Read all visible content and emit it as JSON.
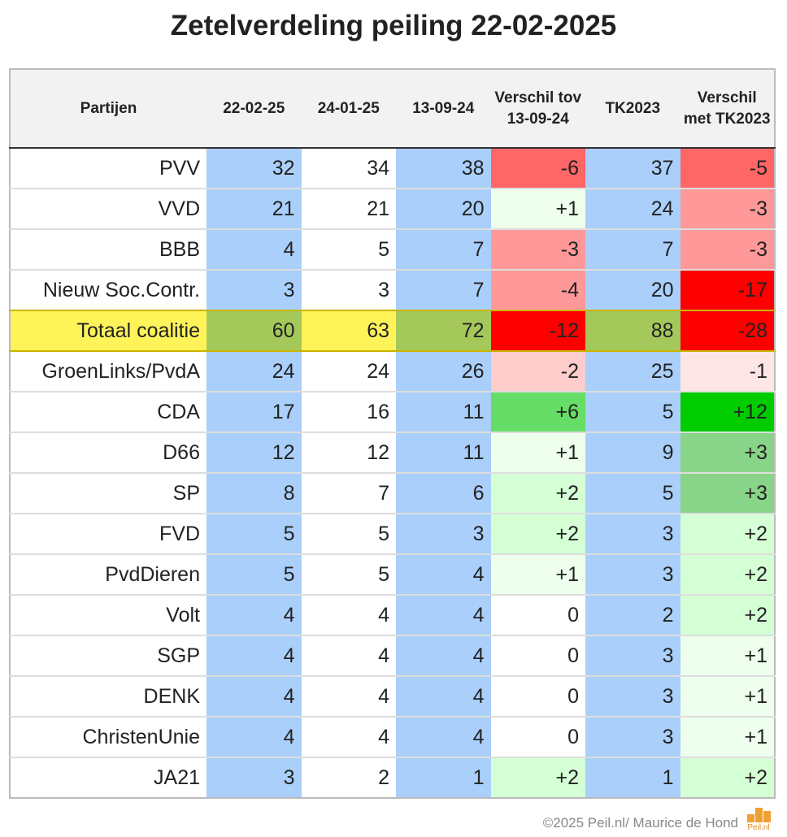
{
  "title": "Zetelverdeling peiling 22-02-2025",
  "table": {
    "header": [
      "Partijen",
      "22-02-25",
      "24-01-25",
      "13-09-24",
      "Verschil tov 13-09-24",
      "TK2023",
      "Verschil met TK2023"
    ],
    "rows": [
      [
        "PVV",
        "32",
        "34",
        "38",
        "-6",
        "37",
        "-5"
      ],
      [
        "VVD",
        "21",
        "21",
        "20",
        "+1",
        "24",
        "-3"
      ],
      [
        "BBB",
        "4",
        "5",
        "7",
        "-3",
        "7",
        "-3"
      ],
      [
        "Nieuw Soc.Contr.",
        "3",
        "3",
        "7",
        "-4",
        "20",
        "-17"
      ],
      [
        "Totaal coalitie",
        "60",
        "63",
        "72",
        "-12",
        "88",
        "-28"
      ],
      [
        "GroenLinks/PvdA",
        "24",
        "24",
        "26",
        "-2",
        "25",
        "-1"
      ],
      [
        "CDA",
        "17",
        "16",
        "11",
        "+6",
        "5",
        "+12"
      ],
      [
        "D66",
        "12",
        "12",
        "11",
        "+1",
        "9",
        "+3"
      ],
      [
        "SP",
        "8",
        "7",
        "6",
        "+2",
        "5",
        "+3"
      ],
      [
        "FVD",
        "5",
        "5",
        "3",
        "+2",
        "3",
        "+2"
      ],
      [
        "PvdDieren",
        "5",
        "5",
        "4",
        "+1",
        "3",
        "+2"
      ],
      [
        "Volt",
        "4",
        "4",
        "4",
        "0",
        "2",
        "+2"
      ],
      [
        "SGP",
        "4",
        "4",
        "4",
        "0",
        "3",
        "+1"
      ],
      [
        "DENK",
        "4",
        "4",
        "4",
        "0",
        "3",
        "+1"
      ],
      [
        "ChristenUnie",
        "4",
        "4",
        "4",
        "0",
        "3",
        "+1"
      ],
      [
        "JA21",
        "3",
        "2",
        "1",
        "+2",
        "1",
        "+2"
      ]
    ]
  },
  "footer": {
    "credit": "©2025 Peil.nl/ Maurice de Hond",
    "logo": "Peil.nl"
  }
}
